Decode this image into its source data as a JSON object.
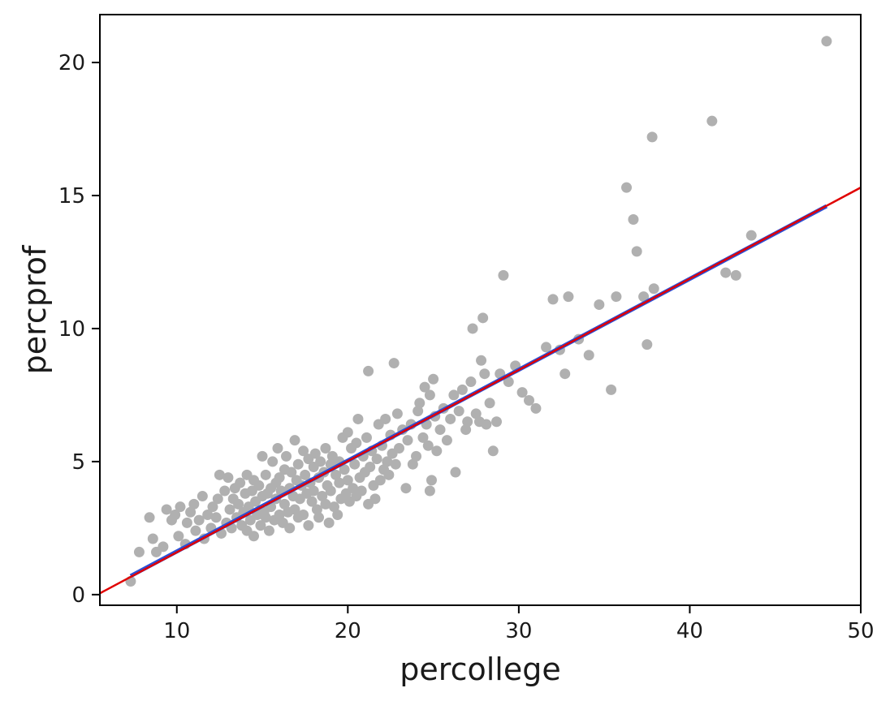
{
  "chart_data": {
    "type": "scatter",
    "title": "",
    "xlabel": "percollege",
    "ylabel": "percprof",
    "xlim": [
      5.5,
      50
    ],
    "ylim": [
      -0.4,
      21.8
    ],
    "xticks": [
      10,
      20,
      30,
      40,
      50
    ],
    "yticks": [
      0,
      5,
      10,
      15,
      20
    ],
    "grid": false,
    "legend": "none",
    "point_color": "#b0b0b0",
    "lines": [
      {
        "color": "#2b4fd6",
        "x": [
          7.3,
          48.0
        ],
        "y": [
          0.7,
          14.6
        ]
      },
      {
        "color": "#e00000",
        "x": [
          5.5,
          50.0
        ],
        "y": [
          0.05,
          15.3
        ]
      }
    ],
    "points": [
      [
        7.3,
        0.5
      ],
      [
        7.8,
        1.6
      ],
      [
        8.4,
        2.9
      ],
      [
        8.6,
        2.1
      ],
      [
        8.8,
        1.6
      ],
      [
        9.2,
        1.8
      ],
      [
        9.4,
        3.2
      ],
      [
        9.7,
        2.8
      ],
      [
        9.9,
        3.0
      ],
      [
        10.1,
        2.2
      ],
      [
        10.2,
        3.3
      ],
      [
        10.5,
        1.9
      ],
      [
        10.6,
        2.7
      ],
      [
        10.8,
        3.1
      ],
      [
        11.0,
        3.4
      ],
      [
        11.1,
        2.4
      ],
      [
        11.3,
        2.8
      ],
      [
        11.5,
        3.7
      ],
      [
        11.6,
        2.1
      ],
      [
        11.8,
        3.0
      ],
      [
        12.0,
        2.5
      ],
      [
        12.1,
        3.3
      ],
      [
        12.3,
        2.9
      ],
      [
        12.4,
        3.6
      ],
      [
        12.5,
        4.5
      ],
      [
        12.6,
        2.3
      ],
      [
        12.8,
        3.9
      ],
      [
        12.9,
        2.7
      ],
      [
        13.0,
        4.4
      ],
      [
        13.1,
        3.2
      ],
      [
        13.2,
        2.5
      ],
      [
        13.3,
        3.6
      ],
      [
        13.4,
        4.0
      ],
      [
        13.5,
        2.9
      ],
      [
        13.6,
        3.4
      ],
      [
        13.7,
        4.2
      ],
      [
        13.8,
        2.6
      ],
      [
        13.9,
        3.1
      ],
      [
        14.0,
        3.8
      ],
      [
        14.1,
        4.5
      ],
      [
        14.1,
        2.4
      ],
      [
        14.2,
        3.3
      ],
      [
        14.3,
        2.8
      ],
      [
        14.4,
        3.9
      ],
      [
        14.5,
        4.3
      ],
      [
        14.5,
        2.2
      ],
      [
        14.6,
        3.5
      ],
      [
        14.7,
        3.0
      ],
      [
        14.8,
        4.1
      ],
      [
        14.9,
        2.6
      ],
      [
        15.0,
        5.2
      ],
      [
        15.0,
        3.7
      ],
      [
        15.1,
        3.1
      ],
      [
        15.2,
        4.5
      ],
      [
        15.2,
        2.9
      ],
      [
        15.3,
        3.8
      ],
      [
        15.4,
        2.4
      ],
      [
        15.5,
        4.0
      ],
      [
        15.5,
        3.3
      ],
      [
        15.6,
        5.0
      ],
      [
        15.7,
        2.8
      ],
      [
        15.8,
        4.2
      ],
      [
        15.8,
        3.6
      ],
      [
        15.9,
        5.5
      ],
      [
        16.0,
        3.0
      ],
      [
        16.0,
        4.4
      ],
      [
        16.1,
        3.9
      ],
      [
        16.2,
        2.7
      ],
      [
        16.3,
        4.7
      ],
      [
        16.3,
        3.4
      ],
      [
        16.4,
        5.2
      ],
      [
        16.5,
        3.1
      ],
      [
        16.6,
        4.0
      ],
      [
        16.6,
        2.5
      ],
      [
        16.7,
        4.6
      ],
      [
        16.8,
        3.7
      ],
      [
        16.9,
        5.8
      ],
      [
        16.9,
        3.2
      ],
      [
        17.0,
        4.3
      ],
      [
        17.1,
        2.9
      ],
      [
        17.1,
        4.9
      ],
      [
        17.2,
        3.6
      ],
      [
        17.3,
        4.1
      ],
      [
        17.4,
        5.4
      ],
      [
        17.4,
        3.0
      ],
      [
        17.5,
        4.5
      ],
      [
        17.6,
        3.8
      ],
      [
        17.7,
        5.1
      ],
      [
        17.7,
        2.6
      ],
      [
        17.8,
        4.2
      ],
      [
        17.9,
        3.5
      ],
      [
        18.0,
        4.8
      ],
      [
        18.0,
        3.9
      ],
      [
        18.1,
        5.3
      ],
      [
        18.2,
        3.2
      ],
      [
        18.3,
        4.4
      ],
      [
        18.3,
        2.9
      ],
      [
        18.4,
        5.0
      ],
      [
        18.5,
        3.7
      ],
      [
        18.6,
        4.6
      ],
      [
        18.7,
        5.5
      ],
      [
        18.7,
        3.4
      ],
      [
        18.8,
        4.1
      ],
      [
        18.9,
        2.7
      ],
      [
        19.0,
        4.9
      ],
      [
        19.0,
        3.9
      ],
      [
        19.1,
        5.2
      ],
      [
        19.2,
        3.3
      ],
      [
        19.3,
        4.5
      ],
      [
        19.4,
        3.0
      ],
      [
        19.5,
        5.0
      ],
      [
        19.5,
        4.2
      ],
      [
        19.6,
        3.6
      ],
      [
        19.7,
        5.9
      ],
      [
        19.8,
        4.7
      ],
      [
        19.9,
        3.8
      ],
      [
        20.0,
        6.1
      ],
      [
        20.0,
        4.3
      ],
      [
        20.1,
        3.5
      ],
      [
        20.2,
        5.5
      ],
      [
        20.3,
        4.0
      ],
      [
        20.4,
        4.9
      ],
      [
        20.5,
        5.7
      ],
      [
        20.5,
        3.7
      ],
      [
        20.6,
        6.6
      ],
      [
        20.7,
        4.4
      ],
      [
        20.8,
        3.9
      ],
      [
        20.9,
        5.2
      ],
      [
        21.0,
        4.6
      ],
      [
        21.1,
        5.9
      ],
      [
        21.2,
        8.4
      ],
      [
        21.2,
        3.4
      ],
      [
        21.3,
        4.8
      ],
      [
        21.4,
        5.4
      ],
      [
        21.5,
        4.1
      ],
      [
        21.6,
        3.6
      ],
      [
        21.7,
        5.1
      ],
      [
        21.8,
        6.4
      ],
      [
        21.9,
        4.3
      ],
      [
        22.0,
        5.6
      ],
      [
        22.1,
        4.7
      ],
      [
        22.2,
        6.6
      ],
      [
        22.3,
        5.0
      ],
      [
        22.4,
        4.5
      ],
      [
        22.5,
        6.0
      ],
      [
        22.6,
        5.3
      ],
      [
        22.7,
        8.7
      ],
      [
        22.8,
        4.9
      ],
      [
        22.9,
        6.8
      ],
      [
        23.0,
        5.5
      ],
      [
        23.2,
        6.2
      ],
      [
        23.4,
        4.0
      ],
      [
        23.5,
        5.8
      ],
      [
        23.7,
        6.4
      ],
      [
        23.8,
        4.9
      ],
      [
        24.0,
        5.2
      ],
      [
        24.1,
        6.9
      ],
      [
        24.2,
        7.2
      ],
      [
        24.4,
        5.9
      ],
      [
        24.5,
        7.8
      ],
      [
        24.6,
        6.4
      ],
      [
        24.7,
        5.6
      ],
      [
        24.8,
        3.9
      ],
      [
        24.8,
        7.5
      ],
      [
        24.9,
        4.3
      ],
      [
        25.0,
        8.1
      ],
      [
        25.1,
        6.7
      ],
      [
        25.2,
        5.4
      ],
      [
        25.4,
        6.2
      ],
      [
        25.6,
        7.0
      ],
      [
        25.8,
        5.8
      ],
      [
        26.0,
        6.6
      ],
      [
        26.2,
        7.5
      ],
      [
        26.3,
        4.6
      ],
      [
        26.5,
        6.9
      ],
      [
        26.7,
        7.7
      ],
      [
        26.9,
        6.2
      ],
      [
        27.0,
        6.5
      ],
      [
        27.2,
        8.0
      ],
      [
        27.3,
        10.0
      ],
      [
        27.5,
        6.8
      ],
      [
        27.7,
        6.5
      ],
      [
        27.8,
        8.8
      ],
      [
        27.9,
        10.4
      ],
      [
        28.0,
        8.3
      ],
      [
        28.1,
        6.4
      ],
      [
        28.3,
        7.2
      ],
      [
        28.5,
        5.4
      ],
      [
        28.7,
        6.5
      ],
      [
        28.9,
        8.3
      ],
      [
        29.1,
        12.0
      ],
      [
        29.4,
        8.0
      ],
      [
        29.8,
        8.6
      ],
      [
        30.2,
        7.6
      ],
      [
        30.6,
        7.3
      ],
      [
        31.0,
        7.0
      ],
      [
        31.6,
        9.3
      ],
      [
        32.0,
        11.1
      ],
      [
        32.4,
        9.2
      ],
      [
        32.7,
        8.3
      ],
      [
        32.9,
        11.2
      ],
      [
        33.5,
        9.6
      ],
      [
        34.1,
        9.0
      ],
      [
        34.7,
        10.9
      ],
      [
        35.4,
        7.7
      ],
      [
        35.7,
        11.2
      ],
      [
        36.3,
        15.3
      ],
      [
        36.7,
        14.1
      ],
      [
        36.9,
        12.9
      ],
      [
        37.3,
        11.2
      ],
      [
        37.5,
        9.4
      ],
      [
        37.8,
        17.2
      ],
      [
        37.9,
        11.5
      ],
      [
        41.3,
        17.8
      ],
      [
        42.1,
        12.1
      ],
      [
        42.7,
        12.0
      ],
      [
        43.6,
        13.5
      ],
      [
        48.0,
        20.8
      ]
    ]
  }
}
